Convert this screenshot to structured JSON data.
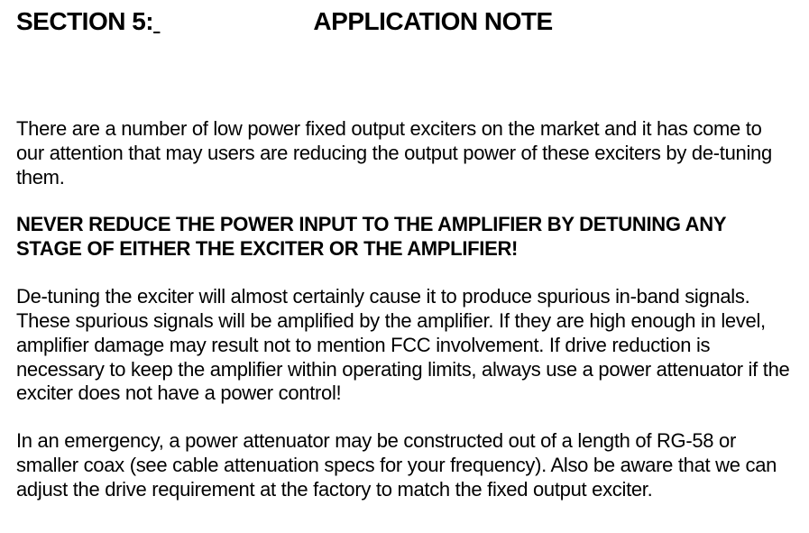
{
  "heading": {
    "section_label": "SECTION 5:",
    "note_label": "APPLICATION NOTE"
  },
  "paragraphs": {
    "p1": "There are a number of low power fixed output exciters on the market and it has come to our attention that may users are reducing the output power of these exciters by de-tuning them.",
    "p2": "NEVER REDUCE THE POWER INPUT TO THE AMPLIFIER BY DETUNING ANY STAGE OF EITHER THE EXCITER OR THE AMPLIFIER!",
    "p3": "De-tuning the exciter will almost certainly cause it to produce spurious in-band signals. These spurious signals will be amplified by the amplifier. If they are high enough in level, amplifier damage may result not to mention FCC involvement. If drive reduction is necessary to keep the amplifier within operating limits, always use a power attenuator if the exciter does not have a power control!",
    "p4": "In an emergency, a power attenuator may be constructed out of a length of RG-58 or smaller coax (see cable attenuation specs for your frequency). Also be aware that we can adjust the drive requirement at the factory to match the fixed output exciter."
  },
  "style": {
    "background_color": "#ffffff",
    "text_color": "#000000",
    "heading_fontsize": 28,
    "body_fontsize": 22,
    "font_family": "Arial"
  }
}
